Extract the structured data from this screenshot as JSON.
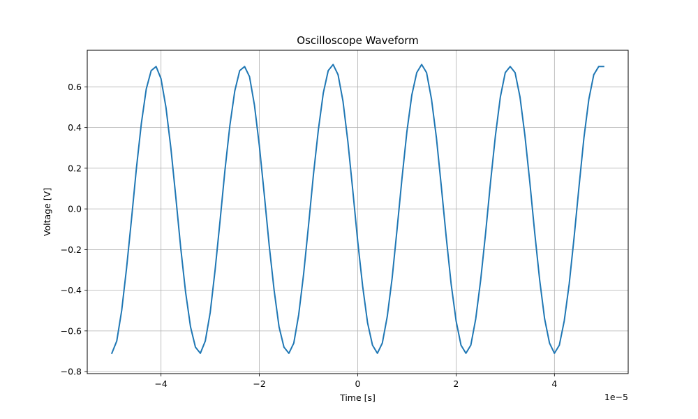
{
  "chart_data": {
    "type": "line",
    "title": "Oscilloscope Waveform",
    "xlabel": "Time [s]",
    "ylabel": "Voltage [V]",
    "x_offset_label": "1e−5",
    "xlim": [
      -5.5e-05,
      5.5e-05
    ],
    "ylim": [
      -0.81,
      0.78
    ],
    "grid": true,
    "x_ticks": [
      {
        "value": -4e-05,
        "label": "−4"
      },
      {
        "value": -2e-05,
        "label": "−2"
      },
      {
        "value": 0,
        "label": "0"
      },
      {
        "value": 2e-05,
        "label": "2"
      },
      {
        "value": 4e-05,
        "label": "4"
      }
    ],
    "y_ticks": [
      {
        "value": -0.8,
        "label": "−0.8"
      },
      {
        "value": -0.6,
        "label": "−0.6"
      },
      {
        "value": -0.4,
        "label": "−0.4"
      },
      {
        "value": -0.2,
        "label": "−0.2"
      },
      {
        "value": 0.0,
        "label": "0.0"
      },
      {
        "value": 0.2,
        "label": "0.2"
      },
      {
        "value": 0.4,
        "label": "0.4"
      },
      {
        "value": 0.6,
        "label": "0.6"
      }
    ],
    "series": [
      {
        "color": "#1f77b4",
        "x": [
          -5e-05,
          -4.9e-05,
          -4.8e-05,
          -4.7e-05,
          -4.6e-05,
          -4.5e-05,
          -4.4e-05,
          -4.3e-05,
          -4.2e-05,
          -4.1e-05,
          -4e-05,
          -3.9e-05,
          -3.8e-05,
          -3.7e-05,
          -3.6e-05,
          -3.5e-05,
          -3.4e-05,
          -3.3e-05,
          -3.2e-05,
          -3.1e-05,
          -3e-05,
          -2.9e-05,
          -2.8e-05,
          -2.7e-05,
          -2.6e-05,
          -2.5e-05,
          -2.4e-05,
          -2.3e-05,
          -2.2e-05,
          -2.1e-05,
          -2e-05,
          -1.9e-05,
          -1.8e-05,
          -1.7e-05,
          -1.6e-05,
          -1.5e-05,
          -1.4e-05,
          -1.3e-05,
          -1.2e-05,
          -1.1e-05,
          -1e-05,
          -9e-06,
          -8e-06,
          -7e-06,
          -6e-06,
          -5e-06,
          -4e-06,
          -3e-06,
          -2e-06,
          -1e-06,
          0.0,
          1e-06,
          2e-06,
          3e-06,
          4e-06,
          5e-06,
          6e-06,
          7e-06,
          8e-06,
          9e-06,
          1e-05,
          1.1e-05,
          1.2e-05,
          1.3e-05,
          1.4e-05,
          1.5e-05,
          1.6e-05,
          1.7e-05,
          1.8e-05,
          1.9e-05,
          2e-05,
          2.1e-05,
          2.2e-05,
          2.3e-05,
          2.4e-05,
          2.5e-05,
          2.6e-05,
          2.7e-05,
          2.8e-05,
          2.9e-05,
          3e-05,
          3.1e-05,
          3.2e-05,
          3.3e-05,
          3.4e-05,
          3.5e-05,
          3.6e-05,
          3.7e-05,
          3.8e-05,
          3.9e-05,
          4e-05,
          4.1e-05,
          4.2e-05,
          4.3e-05,
          4.4e-05,
          4.5e-05,
          4.6e-05,
          4.7e-05,
          4.8e-05,
          4.9e-05,
          5e-05
        ],
        "y": [
          -0.71,
          -0.65,
          -0.5,
          -0.29,
          -0.05,
          0.2,
          0.42,
          0.59,
          0.68,
          0.7,
          0.64,
          0.5,
          0.3,
          0.06,
          -0.19,
          -0.41,
          -0.58,
          -0.68,
          -0.71,
          -0.65,
          -0.51,
          -0.3,
          -0.06,
          0.19,
          0.41,
          0.58,
          0.68,
          0.7,
          0.65,
          0.51,
          0.31,
          0.07,
          -0.18,
          -0.4,
          -0.58,
          -0.68,
          -0.71,
          -0.66,
          -0.52,
          -0.32,
          -0.08,
          0.17,
          0.39,
          0.57,
          0.68,
          0.71,
          0.66,
          0.53,
          0.33,
          0.09,
          -0.16,
          -0.38,
          -0.56,
          -0.67,
          -0.71,
          -0.66,
          -0.53,
          -0.34,
          -0.1,
          0.15,
          0.38,
          0.56,
          0.67,
          0.71,
          0.67,
          0.54,
          0.35,
          0.11,
          -0.14,
          -0.37,
          -0.55,
          -0.67,
          -0.71,
          -0.67,
          -0.54,
          -0.35,
          -0.12,
          0.13,
          0.36,
          0.55,
          0.67,
          0.7,
          0.67,
          0.55,
          0.36,
          0.13,
          -0.12,
          -0.35,
          -0.54,
          -0.66,
          -0.71,
          -0.67,
          -0.55,
          -0.37,
          -0.14,
          0.11,
          0.35,
          0.54,
          0.66,
          0.7,
          0.7
        ]
      }
    ]
  }
}
